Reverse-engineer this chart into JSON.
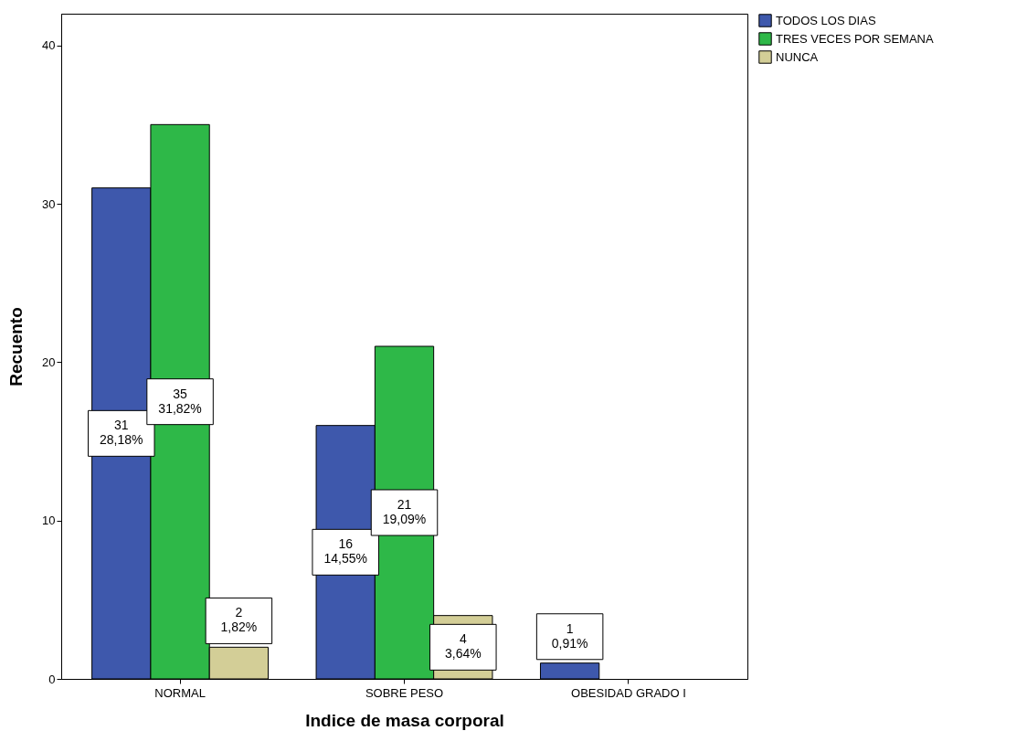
{
  "chart_data": {
    "type": "bar",
    "xlabel": "Indice de masa corporal",
    "ylabel": "Recuento",
    "categories": [
      "NORMAL",
      "SOBRE PESO",
      "OBESIDAD GRADO I"
    ],
    "series": [
      {
        "name": "TODOS LOS DIAS",
        "color": "#3e58ac",
        "values": [
          31,
          16,
          1
        ],
        "value_labels": [
          "31\n28,18%",
          "16\n14,55%",
          "1\n0,91%"
        ]
      },
      {
        "name": "TRES VECES POR SEMANA",
        "color": "#2eb848",
        "values": [
          35,
          21,
          null
        ],
        "value_labels": [
          "35\n31,82%",
          "21\n19,09%",
          null
        ]
      },
      {
        "name": "NUNCA",
        "color": "#d3ce97",
        "values": [
          2,
          4,
          null
        ],
        "value_labels": [
          "2\n1,82%",
          "4\n3,64%",
          null
        ]
      }
    ],
    "ylim": [
      0,
      42
    ],
    "yticks": [
      0,
      10,
      20,
      30,
      40
    ],
    "grid": false,
    "legend": "top right"
  }
}
